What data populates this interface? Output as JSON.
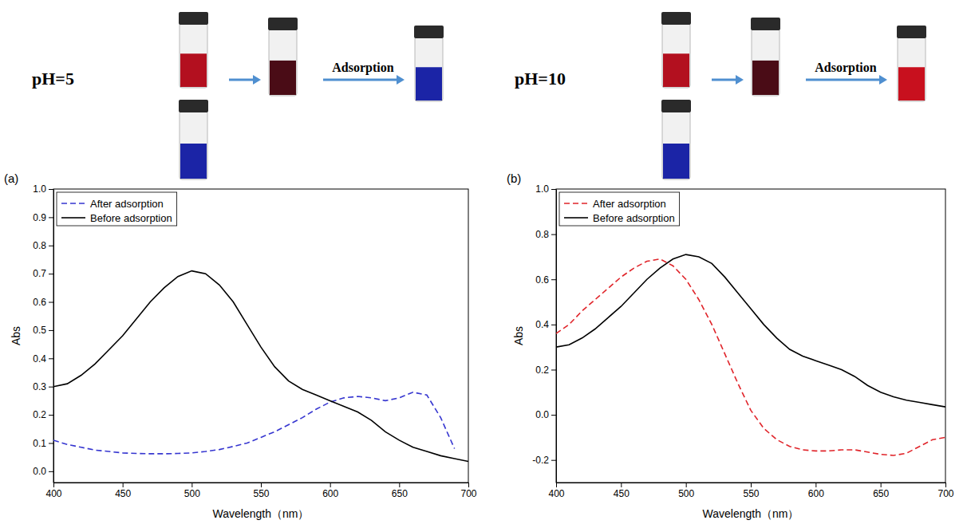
{
  "chart_data": [
    {
      "type": "line",
      "title": "(a)",
      "annotations": [
        "pH=5",
        "Adsorption"
      ],
      "x_label": "Wavelength（nm）",
      "y_label": "Abs",
      "x": [
        400,
        410,
        420,
        430,
        440,
        450,
        460,
        470,
        480,
        490,
        500,
        510,
        520,
        530,
        540,
        550,
        560,
        570,
        580,
        590,
        600,
        610,
        620,
        630,
        640,
        650,
        660,
        670,
        680,
        690,
        700
      ],
      "series": [
        {
          "name": "After adsorption",
          "color": "#3636d0",
          "line_style": "dashed",
          "values": [
            0.11,
            0.095,
            0.085,
            0.075,
            0.07,
            0.065,
            0.063,
            0.062,
            0.062,
            0.063,
            0.065,
            0.07,
            0.077,
            0.088,
            0.1,
            0.12,
            0.14,
            0.165,
            0.19,
            0.22,
            0.245,
            0.26,
            0.265,
            0.26,
            0.25,
            0.26,
            0.28,
            0.27,
            0.19,
            0.08,
            null
          ]
        },
        {
          "name": "Before adsorption",
          "color": "#000000",
          "line_style": "solid",
          "values": [
            0.3,
            0.31,
            0.34,
            0.38,
            0.43,
            0.48,
            0.54,
            0.6,
            0.65,
            0.69,
            0.71,
            0.7,
            0.66,
            0.6,
            0.52,
            0.44,
            0.37,
            0.32,
            0.29,
            0.27,
            0.25,
            0.23,
            0.21,
            0.18,
            0.14,
            0.11,
            0.085,
            0.07,
            0.055,
            0.045,
            0.035
          ]
        }
      ],
      "xlim": [
        400,
        700
      ],
      "xticks": [
        400,
        450,
        500,
        550,
        600,
        650,
        700
      ],
      "ylim": [
        -0.04,
        1.0
      ],
      "yticks": [
        {
          "value": 0,
          "label": "0.0"
        },
        {
          "value": 0.1,
          "label": "0.1"
        },
        {
          "value": 0.2,
          "label": "0.2"
        },
        {
          "value": 0.3,
          "label": "0.3"
        },
        {
          "value": 0.4,
          "label": "0.4"
        },
        {
          "value": 0.5,
          "label": "0.5"
        },
        {
          "value": 0.6,
          "label": "0.6"
        },
        {
          "value": 0.7,
          "label": "0.7"
        },
        {
          "value": 0.8,
          "label": "0.8"
        },
        {
          "value": 0.9,
          "label": "0.9"
        },
        {
          "value": 1,
          "label": "1.0"
        }
      ],
      "legend": "upper left",
      "grid": false
    },
    {
      "type": "line",
      "title": "(b)",
      "annotations": [
        "pH=10",
        "Adsorption"
      ],
      "x_label": "Wavelength（nm）",
      "y_label": "Abs",
      "x": [
        400,
        410,
        420,
        430,
        440,
        450,
        460,
        470,
        480,
        490,
        500,
        510,
        520,
        530,
        540,
        550,
        560,
        570,
        580,
        590,
        600,
        610,
        620,
        630,
        640,
        650,
        660,
        670,
        680,
        690,
        700
      ],
      "series": [
        {
          "name": "After adsorption",
          "color": "#e0242a",
          "line_style": "dashed",
          "values": [
            0.36,
            0.4,
            0.46,
            0.51,
            0.56,
            0.61,
            0.65,
            0.68,
            0.69,
            0.66,
            0.6,
            0.51,
            0.4,
            0.27,
            0.14,
            0.02,
            -0.06,
            -0.11,
            -0.14,
            -0.155,
            -0.16,
            -0.16,
            -0.155,
            -0.155,
            -0.165,
            -0.175,
            -0.18,
            -0.17,
            -0.14,
            -0.11,
            -0.1
          ]
        },
        {
          "name": "Before adsorption",
          "color": "#000000",
          "line_style": "solid",
          "values": [
            0.3,
            0.31,
            0.34,
            0.38,
            0.43,
            0.48,
            0.54,
            0.6,
            0.65,
            0.69,
            0.71,
            0.7,
            0.67,
            0.61,
            0.54,
            0.47,
            0.4,
            0.34,
            0.29,
            0.26,
            0.24,
            0.22,
            0.2,
            0.17,
            0.13,
            0.1,
            0.08,
            0.065,
            0.055,
            0.045,
            0.035
          ]
        }
      ],
      "xlim": [
        400,
        700
      ],
      "xticks": [
        400,
        450,
        500,
        550,
        600,
        650,
        700
      ],
      "ylim": [
        -0.3,
        1.0
      ],
      "yticks": [
        {
          "value": -0.2,
          "label": "-0.2"
        },
        {
          "value": 0,
          "label": "0.0"
        },
        {
          "value": 0.2,
          "label": "0.2"
        },
        {
          "value": 0.4,
          "label": "0.4"
        },
        {
          "value": 0.6,
          "label": "0.6"
        },
        {
          "value": 0.8,
          "label": "0.8"
        },
        {
          "value": 1,
          "label": "1.0"
        }
      ],
      "legend": "upper left",
      "grid": false
    }
  ]
}
